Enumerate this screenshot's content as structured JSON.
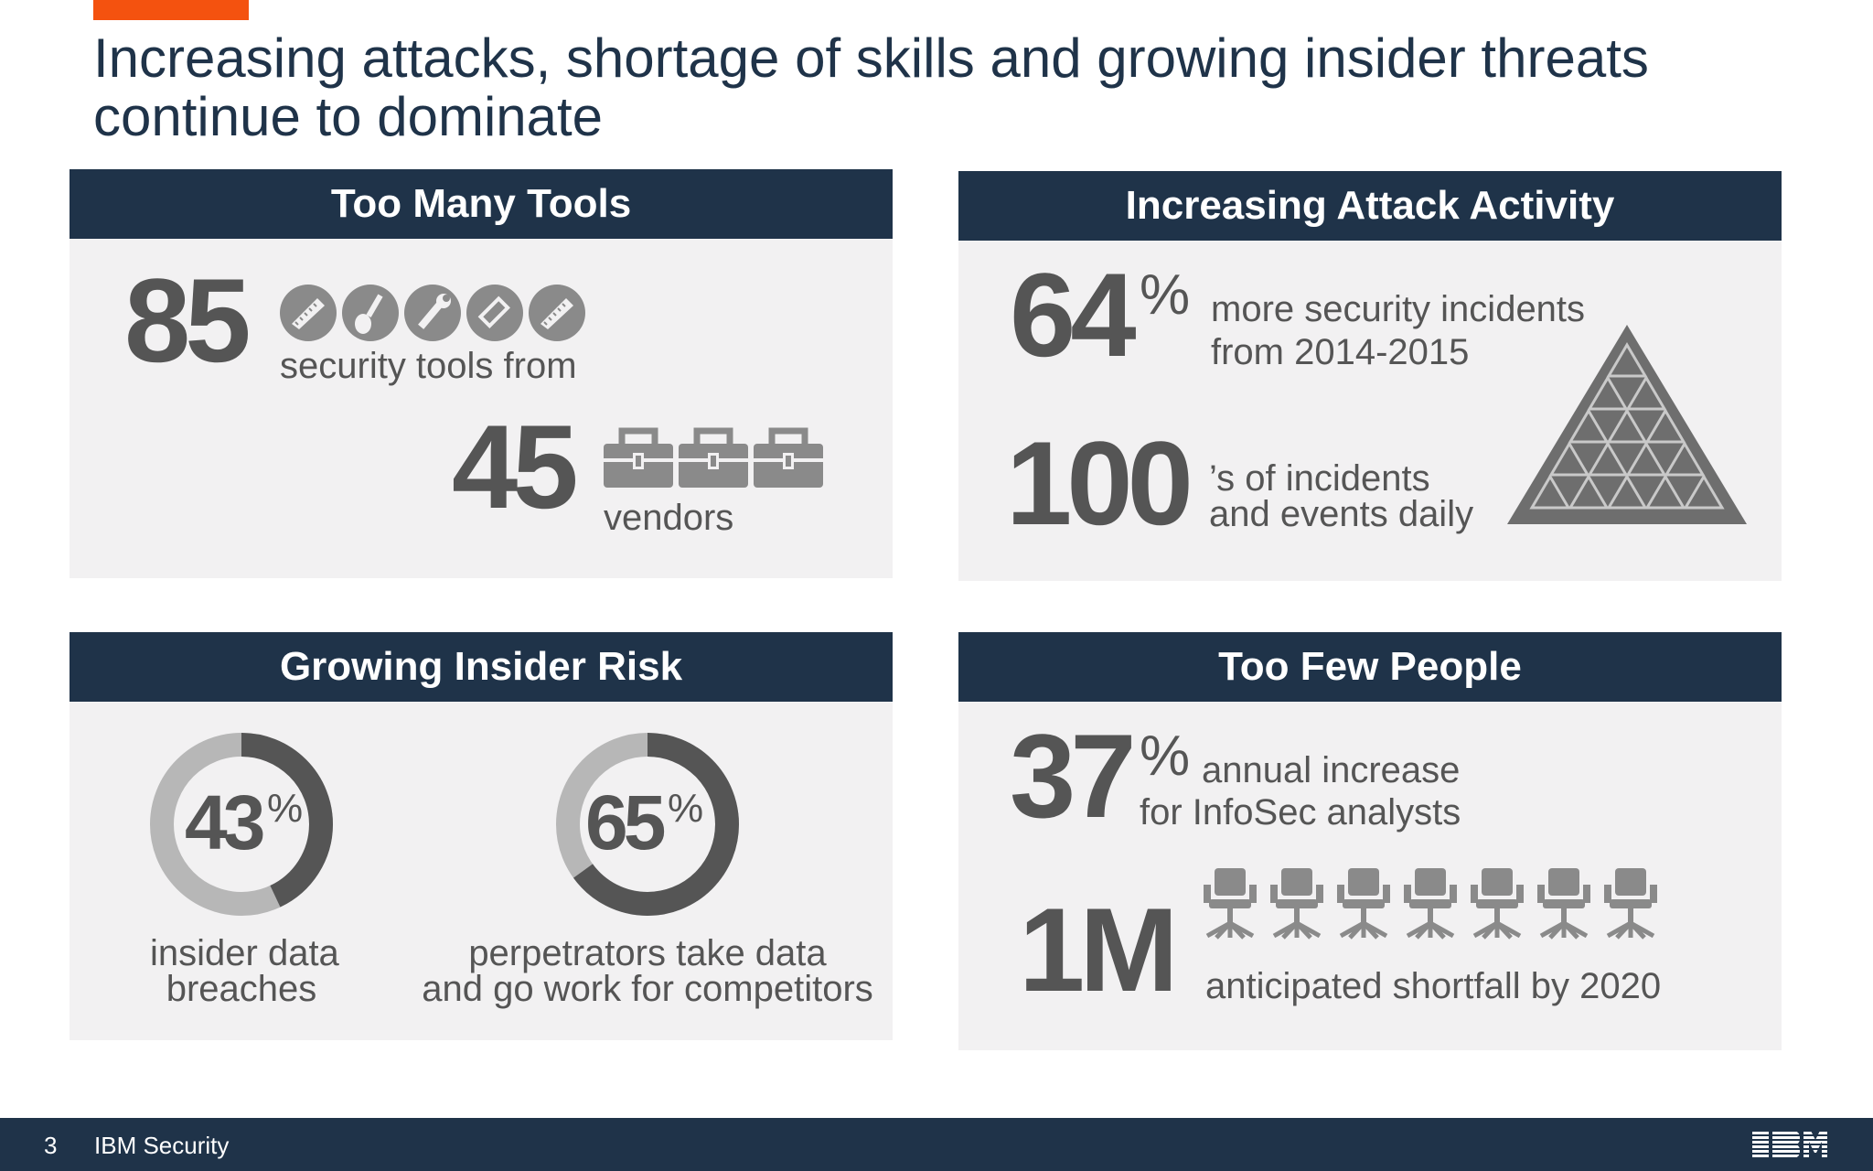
{
  "title": "Increasing attacks, shortage of skills and growing insider threats continue to dominate",
  "colors": {
    "accent": "#f4520f",
    "navy": "#1f3349",
    "panel": "#f2f1f2",
    "text": "#555555"
  },
  "panels": {
    "tools": {
      "heading": "Too Many Tools",
      "tools_count": "85",
      "tools_caption": "security tools from",
      "tool_icons": [
        "saw-icon",
        "shovel-icon",
        "wrench-icon",
        "hacksaw-icon",
        "saw-icon"
      ],
      "vendors_count": "45",
      "vendors_caption": "vendors",
      "vendor_icons": [
        "toolbox-icon",
        "toolbox-icon",
        "toolbox-icon"
      ]
    },
    "attacks": {
      "heading": "Increasing Attack Activity",
      "increase_value": "64",
      "increase_unit": "%",
      "increase_caption_line1": "more security incidents",
      "increase_caption_line2": "from 2014-2015",
      "daily_value": "100",
      "daily_caption_line1": "’s of  incidents",
      "daily_caption_line2": "and events daily",
      "pyramid_icon": "warning-pyramid-icon"
    },
    "insider": {
      "heading": "Growing Insider Risk",
      "donuts": [
        {
          "value": 43,
          "label": "43",
          "unit": "%",
          "caption_line1": "insider data",
          "caption_line2": "breaches"
        },
        {
          "value": 65,
          "label": "65",
          "unit": "%",
          "caption_line1": "perpetrators take data",
          "caption_line2": "and go work for competitors"
        }
      ],
      "donut_colors": {
        "filled": "#555555",
        "remaining": "#b7b7b7"
      }
    },
    "people": {
      "heading": "Too Few People",
      "increase_value": "37",
      "increase_unit": "%",
      "increase_caption_line1": "annual increase",
      "increase_caption_line2": "for InfoSec analysts",
      "shortfall_value": "1M",
      "shortfall_caption": "anticipated shortfall by 2020",
      "chair_icons": [
        "office-chair-icon",
        "office-chair-icon",
        "office-chair-icon",
        "office-chair-icon",
        "office-chair-icon",
        "office-chair-icon",
        "office-chair-icon"
      ]
    }
  },
  "footer": {
    "page_number": "3",
    "brand": "IBM Security",
    "logo_text": "IBM"
  }
}
